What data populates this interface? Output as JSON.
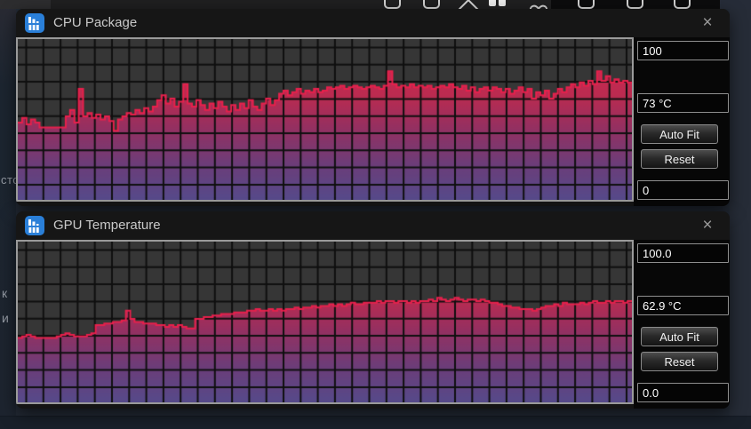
{
  "taskbar": {
    "icons": [
      "window",
      "window",
      "caret",
      "split-squares",
      "heart",
      "window",
      "window",
      "window"
    ]
  },
  "desktop": {
    "text_fragments": [
      {
        "text": "сто"
      },
      {
        "text": "к"
      },
      {
        "text": "и"
      }
    ]
  },
  "colors": {
    "line": "#e8204c",
    "fill_top": "#d42a52",
    "fill_bottom": "#564a8a",
    "grid_cell": "#363636",
    "grid_line": "#0f0f0f",
    "app_icon_blue": "#2a7fd8"
  },
  "windows": [
    {
      "title": "CPU Package",
      "close_label": "×",
      "axis_max": "100",
      "current_value": "73 °C",
      "auto_fit_label": "Auto Fit",
      "reset_label": "Reset",
      "axis_min": "0",
      "chart_data": {
        "type": "area",
        "title": "CPU Package temperature history",
        "ylabel": "°C",
        "ylim": [
          0,
          100
        ],
        "grid": true,
        "current": 73,
        "values": [
          48,
          51,
          47,
          50,
          48,
          45,
          45,
          45,
          45,
          45,
          45,
          52,
          56,
          48,
          69,
          52,
          54,
          51,
          53,
          50,
          52,
          49,
          43,
          50,
          52,
          54,
          53,
          56,
          54,
          57,
          55,
          58,
          62,
          65,
          60,
          63,
          58,
          61,
          72,
          60,
          58,
          62,
          59,
          56,
          60,
          57,
          61,
          58,
          55,
          59,
          56,
          60,
          57,
          62,
          58,
          56,
          60,
          63,
          59,
          62,
          66,
          68,
          65,
          67,
          69,
          66,
          68,
          67,
          69,
          67,
          68,
          70,
          69,
          70,
          71,
          69,
          70,
          71,
          70,
          69,
          70,
          71,
          70,
          69,
          71,
          80,
          72,
          70,
          71,
          70,
          72,
          70,
          71,
          70,
          71,
          69,
          70,
          71,
          70,
          72,
          70,
          69,
          71,
          68,
          70,
          67,
          69,
          70,
          68,
          70,
          69,
          67,
          69,
          66,
          68,
          70,
          67,
          69,
          63,
          67,
          65,
          68,
          63,
          66,
          69,
          67,
          70,
          72,
          70,
          73,
          71,
          74,
          72,
          80,
          74,
          77,
          73,
          75,
          73,
          74,
          73
        ]
      }
    },
    {
      "title": "GPU Temperature",
      "close_label": "×",
      "axis_max": "100.0",
      "current_value": "62.9 °C",
      "auto_fit_label": "Auto Fit",
      "reset_label": "Reset",
      "axis_min": "0.0",
      "chart_data": {
        "type": "area",
        "title": "GPU temperature history",
        "ylabel": "°C",
        "ylim": [
          0,
          100
        ],
        "grid": true,
        "current": 62.9,
        "values": [
          40,
          41,
          42,
          41,
          40,
          40,
          40,
          40,
          40,
          41,
          42,
          43,
          42,
          41,
          41,
          41,
          42,
          43,
          48,
          48,
          49,
          49,
          50,
          50,
          51,
          57,
          52,
          50,
          50,
          49,
          49,
          49,
          48,
          48,
          47,
          48,
          47,
          48,
          47,
          46,
          46,
          52,
          52,
          53,
          53,
          54,
          54,
          55,
          55,
          55,
          56,
          56,
          56,
          57,
          57,
          58,
          57,
          57,
          58,
          57,
          58,
          57,
          58,
          58,
          59,
          58,
          59,
          59,
          60,
          59,
          60,
          60,
          61,
          60,
          61,
          60,
          61,
          62,
          61,
          61,
          62,
          62,
          62,
          63,
          62,
          63,
          63,
          62,
          63,
          63,
          62,
          63,
          62,
          63,
          63,
          64,
          63,
          65,
          64,
          63,
          64,
          65,
          64,
          63,
          64,
          64,
          63,
          64,
          63,
          62,
          62,
          61,
          60,
          60,
          59,
          59,
          58,
          58,
          58,
          57,
          58,
          59,
          60,
          60,
          61,
          60,
          62,
          61,
          61,
          61,
          62,
          61,
          62,
          63,
          62,
          62,
          63,
          62,
          63,
          63,
          62,
          63
        ]
      }
    }
  ]
}
